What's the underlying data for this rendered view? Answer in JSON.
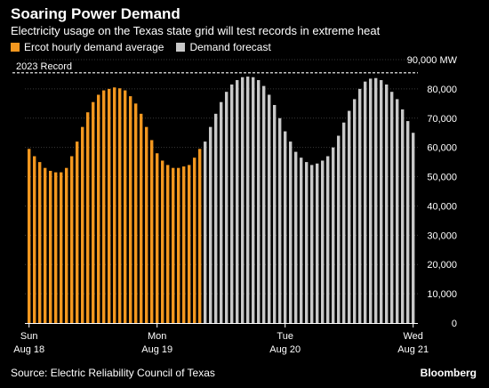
{
  "title": "Soaring Power Demand",
  "subtitle": "Electricity usage on the Texas state grid will test records in extreme heat",
  "legend": [
    {
      "label": "Ercot hourly demand average",
      "color": "#f2971f"
    },
    {
      "label": "Demand forecast",
      "color": "#c8c8c8"
    }
  ],
  "source": "Source: Electric Reliability Council of Texas",
  "brand": "Bloomberg",
  "chart_data": {
    "type": "bar",
    "ylim": [
      0,
      90000
    ],
    "yticks": [
      {
        "value": 0,
        "label": "0"
      },
      {
        "value": 10000,
        "label": "10,000"
      },
      {
        "value": 20000,
        "label": "20,000"
      },
      {
        "value": 30000,
        "label": "30,000"
      },
      {
        "value": 40000,
        "label": "40,000"
      },
      {
        "value": 50000,
        "label": "50,000"
      },
      {
        "value": 60000,
        "label": "60,000"
      },
      {
        "value": 70000,
        "label": "70,000"
      },
      {
        "value": 80000,
        "label": "80,000"
      },
      {
        "value": 90000,
        "label": "90,000 MW"
      }
    ],
    "xticks": [
      {
        "index": 0,
        "line1": "Sun",
        "line2": "Aug 18"
      },
      {
        "index": 24,
        "line1": "Mon",
        "line2": "Aug 19"
      },
      {
        "index": 48,
        "line1": "Tue",
        "line2": "Aug 20"
      },
      {
        "index": 72,
        "line1": "Wed",
        "line2": "Aug 21"
      }
    ],
    "record": {
      "label": "2023 Record",
      "value": 85500
    },
    "series": [
      {
        "name": "Ercot hourly demand average",
        "color": "#f2971f",
        "values": [
          59500,
          57000,
          55000,
          53000,
          52000,
          51500,
          51500,
          53000,
          57000,
          62000,
          67000,
          72000,
          75500,
          78000,
          79500,
          80000,
          80500,
          80200,
          79500,
          77500,
          75000,
          71500,
          67000,
          62500,
          58000,
          55500,
          54000,
          53000,
          53000,
          53500,
          54000,
          56500,
          59500
        ]
      },
      {
        "name": "Demand forecast",
        "color": "#c8c8c8",
        "values": [
          62000,
          67000,
          71500,
          75500,
          79000,
          81500,
          83000,
          84000,
          84200,
          84000,
          83000,
          81000,
          78000,
          74500,
          70000,
          65500,
          62000,
          58500,
          56500,
          55000,
          54000,
          54500,
          55500,
          57000,
          60000,
          64000,
          68500,
          72500,
          76500,
          80000,
          82500,
          83500,
          83700,
          83000,
          81500,
          79000,
          76500,
          73000,
          69000,
          65000
        ]
      }
    ]
  }
}
